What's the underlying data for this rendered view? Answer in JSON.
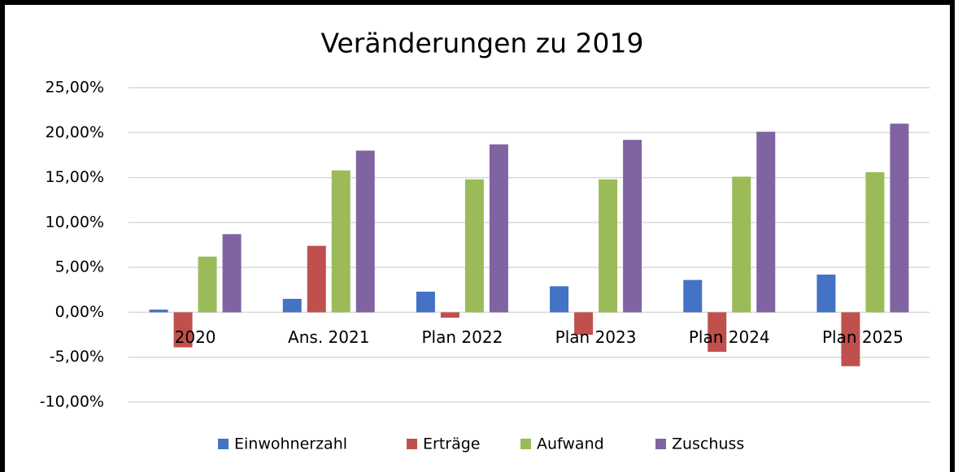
{
  "chart_data": {
    "type": "bar",
    "title": "Veränderungen zu 2019",
    "categories": [
      "2020",
      "Ans. 2021",
      "Plan 2022",
      "Plan 2023",
      "Plan 2024",
      "Plan 2025"
    ],
    "series": [
      {
        "name": "Einwohnerzahl",
        "color": "#4472c4",
        "values": [
          0.3,
          1.5,
          2.3,
          2.9,
          3.6,
          4.2
        ]
      },
      {
        "name": "Erträge",
        "color": "#c0504d",
        "values": [
          -3.9,
          7.4,
          -0.6,
          -2.5,
          -4.4,
          -6.0
        ]
      },
      {
        "name": "Aufwand",
        "color": "#9bbb59",
        "values": [
          6.2,
          15.8,
          14.8,
          14.8,
          15.1,
          15.6
        ]
      },
      {
        "name": "Zuschuss",
        "color": "#8064a2",
        "values": [
          8.7,
          18.0,
          18.7,
          19.2,
          20.1,
          21.0
        ]
      }
    ],
    "ylim": [
      -10,
      25
    ],
    "yticks": [
      {
        "value": -10,
        "label": "-10,00%"
      },
      {
        "value": -5,
        "label": "-5,00%"
      },
      {
        "value": 0,
        "label": "0,00%"
      },
      {
        "value": 5,
        "label": "5,00%"
      },
      {
        "value": 10,
        "label": "10,00%"
      },
      {
        "value": 15,
        "label": "15,00%"
      },
      {
        "value": 20,
        "label": "20,00%"
      },
      {
        "value": 25,
        "label": "25,00%"
      }
    ],
    "grid": true,
    "legend": "bottom"
  }
}
